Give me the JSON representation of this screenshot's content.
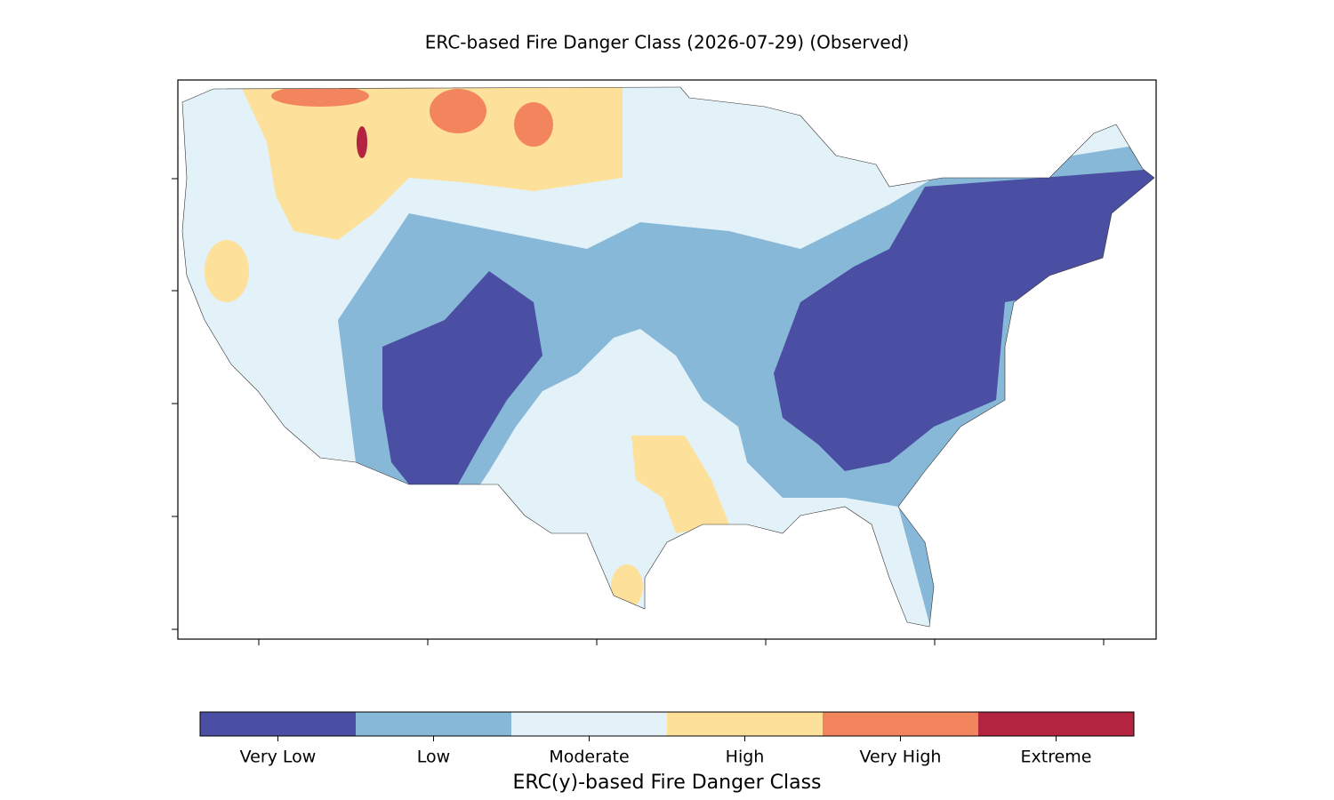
{
  "title": "ERC-based Fire Danger Class (2026-07-29) (Observed)",
  "colorbar": {
    "label": "ERC(y)-based Fire Danger Class",
    "classes": [
      {
        "label": "Very Low",
        "color": "#4b4fa3"
      },
      {
        "label": "Low",
        "color": "#88b8d8"
      },
      {
        "label": "Moderate",
        "color": "#e3f2f8"
      },
      {
        "label": "High",
        "color": "#fde09a"
      },
      {
        "label": "Very High",
        "color": "#f3855e"
      },
      {
        "label": "Extreme",
        "color": "#b2243f"
      }
    ]
  }
}
